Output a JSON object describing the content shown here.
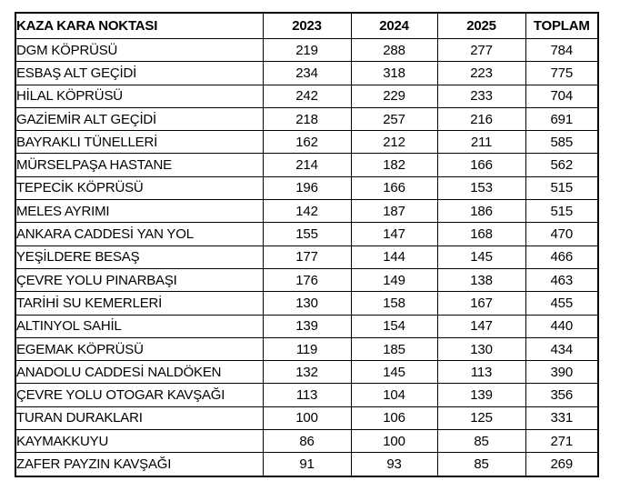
{
  "table": {
    "headers": [
      "KAZA KARA NOKTASI",
      "2023",
      "2024",
      "2025",
      "TOPLAM"
    ],
    "rows": [
      {
        "name": "DGM KÖPRÜSÜ",
        "values": [
          219,
          288,
          277,
          784
        ]
      },
      {
        "name": "ESBAŞ ALT GEÇİDİ",
        "values": [
          234,
          318,
          223,
          775
        ]
      },
      {
        "name": "HİLAL KÖPRÜSÜ",
        "values": [
          242,
          229,
          233,
          704
        ]
      },
      {
        "name": "GAZİEMİR ALT GEÇİDİ",
        "values": [
          218,
          257,
          216,
          691
        ]
      },
      {
        "name": "BAYRAKLI TÜNELLERİ",
        "values": [
          162,
          212,
          211,
          585
        ]
      },
      {
        "name": "MÜRSELPAŞA HASTANE",
        "values": [
          214,
          182,
          166,
          562
        ]
      },
      {
        "name": "TEPECİK KÖPRÜSÜ",
        "values": [
          196,
          166,
          153,
          515
        ]
      },
      {
        "name": "MELES AYRIMI",
        "values": [
          142,
          187,
          186,
          515
        ]
      },
      {
        "name": "ANKARA CADDESİ YAN YOL",
        "values": [
          155,
          147,
          168,
          470
        ]
      },
      {
        "name": "YEŞİLDERE BESAŞ",
        "values": [
          177,
          144,
          145,
          466
        ]
      },
      {
        "name": "ÇEVRE YOLU PINARBAŞI",
        "values": [
          176,
          149,
          138,
          463
        ]
      },
      {
        "name": "TARİHİ SU KEMERLERİ",
        "values": [
          130,
          158,
          167,
          455
        ]
      },
      {
        "name": "ALTINYOL SAHİL",
        "values": [
          139,
          154,
          147,
          440
        ]
      },
      {
        "name": "EGEMAK KÖPRÜSÜ",
        "values": [
          119,
          185,
          130,
          434
        ]
      },
      {
        "name": "ANADOLU CADDESİ NALDÖKEN",
        "values": [
          132,
          145,
          113,
          390
        ]
      },
      {
        "name": "ÇEVRE YOLU OTOGAR KAVŞAĞI",
        "values": [
          113,
          104,
          139,
          356
        ]
      },
      {
        "name": "TURAN DURAKLARI",
        "values": [
          100,
          106,
          125,
          331
        ]
      },
      {
        "name": "KAYMAKKUYU",
        "values": [
          86,
          100,
          85,
          271
        ]
      },
      {
        "name": "ZAFER PAYZIN KAVŞAĞI",
        "values": [
          91,
          93,
          85,
          269
        ]
      }
    ]
  },
  "colors": {
    "border": "#000000",
    "text": "#000000",
    "background": "#ffffff"
  }
}
